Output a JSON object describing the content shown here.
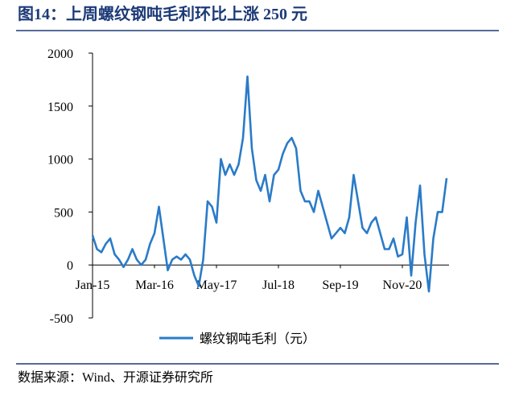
{
  "chart_data": {
    "type": "line",
    "title": "图14：上周螺纹钢吨毛利环比上涨 250 元",
    "source": "数据来源：Wind、开源证券研究所",
    "x": [
      "Jan-15",
      "Feb-15",
      "Mar-15",
      "Apr-15",
      "May-15",
      "Jun-15",
      "Jul-15",
      "Aug-15",
      "Sep-15",
      "Oct-15",
      "Nov-15",
      "Dec-15",
      "Jan-16",
      "Feb-16",
      "Mar-16",
      "Apr-16",
      "May-16",
      "Jun-16",
      "Jul-16",
      "Aug-16",
      "Sep-16",
      "Oct-16",
      "Nov-16",
      "Dec-16",
      "Jan-17",
      "Feb-17",
      "Mar-17",
      "Apr-17",
      "May-17",
      "Jun-17",
      "Jul-17",
      "Aug-17",
      "Sep-17",
      "Oct-17",
      "Nov-17",
      "Dec-17",
      "Jan-18",
      "Feb-18",
      "Mar-18",
      "Apr-18",
      "May-18",
      "Jun-18",
      "Jul-18",
      "Aug-18",
      "Sep-18",
      "Oct-18",
      "Nov-18",
      "Dec-18",
      "Jan-19",
      "Feb-19",
      "Mar-19",
      "Apr-19",
      "May-19",
      "Jun-19",
      "Jul-19",
      "Aug-19",
      "Sep-19",
      "Oct-19",
      "Nov-19",
      "Dec-19",
      "Jan-20",
      "Feb-20",
      "Mar-20",
      "Apr-20",
      "May-20",
      "Jun-20",
      "Jul-20",
      "Aug-20",
      "Sep-20",
      "Oct-20",
      "Nov-20",
      "Dec-20",
      "Jan-21",
      "Feb-21",
      "Mar-21",
      "Apr-21",
      "May-21",
      "Jun-21",
      "Jul-21",
      "Aug-21",
      "Sep-21"
    ],
    "series": [
      {
        "name": "螺纹钢吨毛利（元）",
        "color": "#2a7bc8",
        "values": [
          280,
          150,
          120,
          200,
          250,
          100,
          50,
          -20,
          50,
          150,
          50,
          0,
          50,
          200,
          300,
          550,
          250,
          -50,
          50,
          80,
          50,
          100,
          50,
          -100,
          -200,
          50,
          600,
          550,
          400,
          1000,
          850,
          950,
          850,
          950,
          1200,
          1780,
          1100,
          800,
          700,
          850,
          600,
          850,
          900,
          1050,
          1150,
          1200,
          1100,
          700,
          600,
          600,
          500,
          700,
          550,
          400,
          250,
          300,
          350,
          300,
          450,
          850,
          600,
          350,
          300,
          400,
          450,
          300,
          150,
          150,
          250,
          80,
          100,
          450,
          -100,
          400,
          750,
          100,
          -250,
          250,
          500,
          500,
          820
        ]
      }
    ],
    "xticks": [
      "Jan-15",
      "Mar-16",
      "May-17",
      "Jul-18",
      "Sep-19",
      "Nov-20"
    ],
    "ylim": [
      -500,
      2000
    ],
    "yticks": [
      -500,
      0,
      500,
      1000,
      1500,
      2000
    ]
  }
}
